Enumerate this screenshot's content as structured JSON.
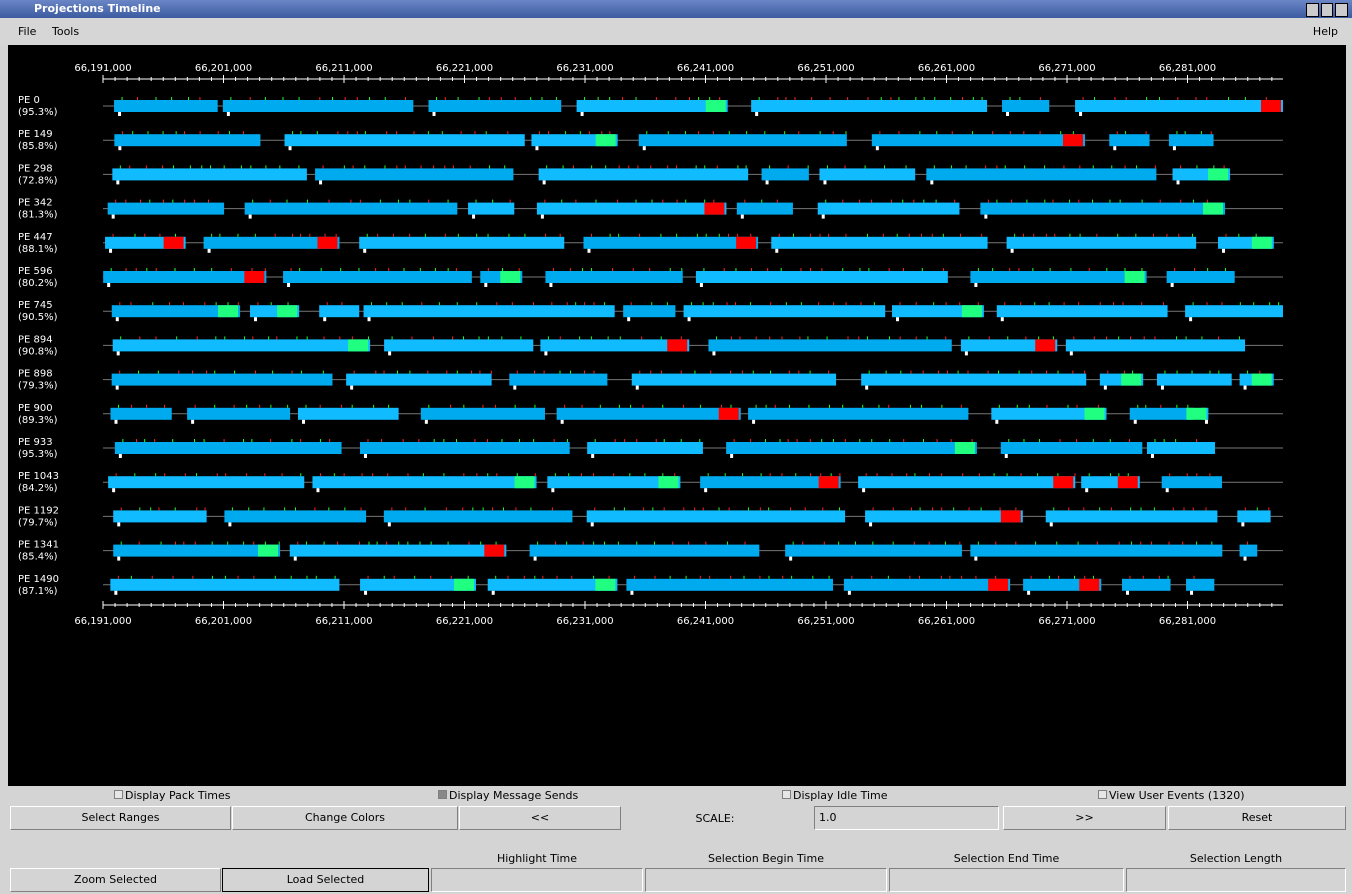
{
  "window": {
    "title": "Projections Timeline"
  },
  "menu": {
    "items": [
      "File",
      "Tools"
    ],
    "help": "Help"
  },
  "axis": {
    "ticks": [
      "66,191,000",
      "66,201,000",
      "66,211,000",
      "66,221,000",
      "66,231,000",
      "66,241,000",
      "66,251,000",
      "66,261,000",
      "66,271,000",
      "66,281,000"
    ]
  },
  "processors": [
    {
      "label": "PE 0",
      "usage": "(95.3%)"
    },
    {
      "label": "PE 149",
      "usage": "(85.8%)"
    },
    {
      "label": "PE 298",
      "usage": "(72.8%)"
    },
    {
      "label": "PE 342",
      "usage": "(81.3%)"
    },
    {
      "label": "PE 447",
      "usage": "(88.1%)"
    },
    {
      "label": "PE 596",
      "usage": "(80.2%)"
    },
    {
      "label": "PE 745",
      "usage": "(90.5%)"
    },
    {
      "label": "PE 894",
      "usage": "(90.8%)"
    },
    {
      "label": "PE 898",
      "usage": "(79.3%)"
    },
    {
      "label": "PE 900",
      "usage": "(89.3%)"
    },
    {
      "label": "PE 933",
      "usage": "(95.3%)"
    },
    {
      "label": "PE 1043",
      "usage": "(84.2%)"
    },
    {
      "label": "PE 1192",
      "usage": "(79.7%)"
    },
    {
      "label": "PE 1341",
      "usage": "(85.4%)"
    },
    {
      "label": "PE 1490",
      "usage": "(87.1%)"
    }
  ],
  "controls": {
    "checkboxes": [
      "Display Pack Times",
      "Display Message Sends",
      "Display Idle Time",
      "View User Events (1320)"
    ],
    "select_ranges": "Select Ranges",
    "change_colors": "Change Colors",
    "prev": "<<",
    "scale_label": "SCALE:",
    "scale_value": "1.0",
    "next": ">>",
    "reset": "Reset",
    "field_labels": [
      "Highlight Time",
      "Selection Begin Time",
      "Selection End Time",
      "Selection Length"
    ],
    "zoom_selected": "Zoom Selected",
    "load_selected": "Load Selected"
  }
}
